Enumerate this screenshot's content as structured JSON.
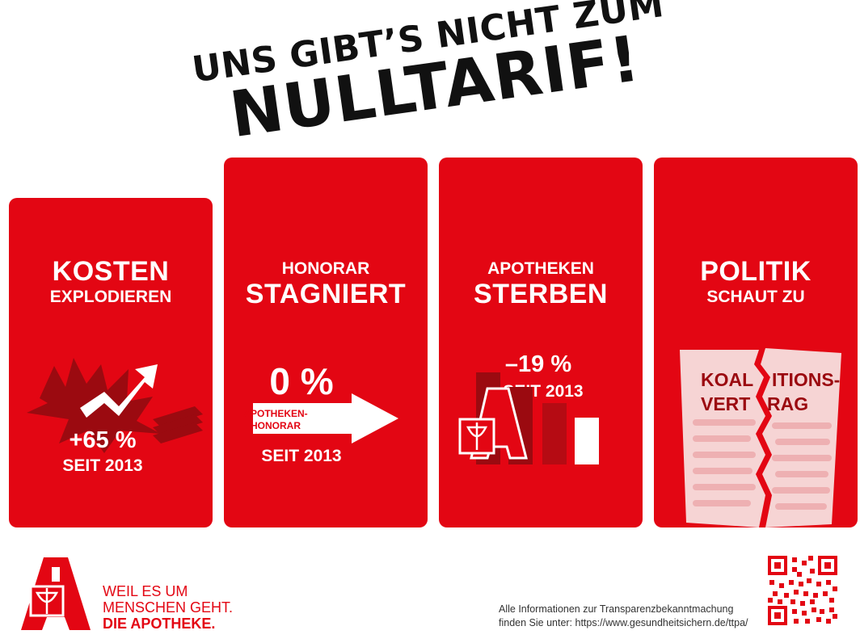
{
  "headline": {
    "line1": "UNS GIBT’S NICHT ZUM",
    "line2": "NULLTARIF!"
  },
  "panels": [
    {
      "title_bold": "KOSTEN",
      "title_sub": "EXPLODIEREN",
      "value": "+65 %",
      "since": "SEIT 2013",
      "icon": "rising-arrow-explosion-money-icon"
    },
    {
      "title_sub": "HONORAR",
      "title_bold": "STAGNIERT",
      "value": "0 %",
      "arrow_line1": "APOTHEKEN-",
      "arrow_line2": "HONORAR",
      "since": "SEIT 2013",
      "icon": "arrow-right-icon"
    },
    {
      "title_sub": "APOTHEKEN",
      "title_bold": "STERBEN",
      "value": "–19 %",
      "since": "SEIT 2013",
      "icon": "pharmacy-a-bar-chart-icon"
    },
    {
      "title_bold": "POLITIK",
      "title_sub": "SCHAUT ZU",
      "doc_line1_left": "KOAL",
      "doc_line1_right": "ITIONS-",
      "doc_line2_left": "VERT",
      "doc_line2_right": "RAG",
      "icon": "torn-document-icon"
    }
  ],
  "footer": {
    "brand_line1": "WEIL ES UM",
    "brand_line2": "MENSCHEN GEHT.",
    "brand_line3": "DIE APOTHEKE.",
    "note_line1": "Alle Informationen zur Transparenzbekanntmachung",
    "note_line2": "finden Sie unter: https://www.gesundheitsichern.de/ttpa/",
    "logo": "apotheke-a-logo",
    "qr": "qr-code-icon"
  },
  "colors": {
    "brand_red": "#e30613",
    "dark_red": "#9b0a10",
    "text_dark": "#111111",
    "paper": "#f6d4d4"
  }
}
